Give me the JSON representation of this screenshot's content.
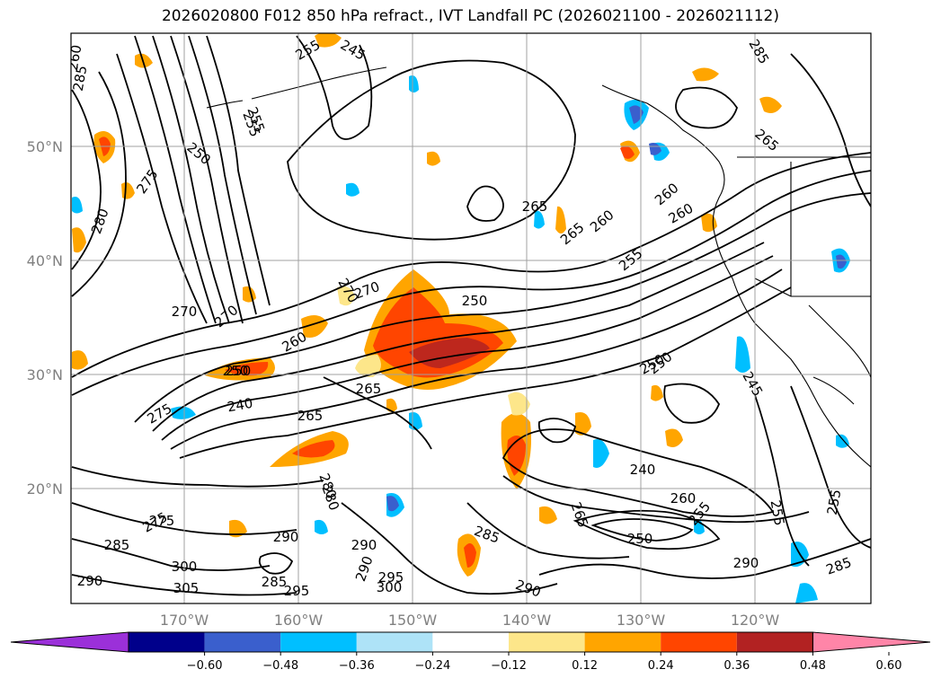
{
  "title": "2026020800 F012 850 hPa refract., IVT Landfall PC (2026021100 - 2026021112)",
  "map": {
    "lon_labels": [
      "170°W",
      "160°W",
      "150°W",
      "140°W",
      "130°W",
      "120°W"
    ],
    "lat_labels": [
      "50°N",
      "40°N",
      "30°N",
      "20°N"
    ],
    "lon_values": [
      -170,
      -160,
      -150,
      -140,
      -130,
      -120
    ],
    "lat_values": [
      50,
      40,
      30,
      20
    ],
    "contour_labels": [
      "285",
      "260",
      "275",
      "280",
      "270",
      "275",
      "270",
      "250",
      "255",
      "250",
      "245",
      "255",
      "255",
      "250",
      "265",
      "260",
      "265",
      "260",
      "255",
      "270",
      "270",
      "260",
      "250",
      "250",
      "265",
      "240",
      "275",
      "260",
      "265",
      "280",
      "245",
      "250",
      "290",
      "275",
      "285",
      "290",
      "280",
      "290",
      "295",
      "285",
      "305",
      "300",
      "300",
      "295",
      "290",
      "265",
      "285",
      "290",
      "260",
      "240",
      "255",
      "250",
      "255",
      "265",
      "285",
      "285",
      "255",
      "290"
    ]
  },
  "colorbar": {
    "ticks": [
      "−0.60",
      "−0.48",
      "−0.36",
      "−0.24",
      "−0.12",
      "0.12",
      "0.24",
      "0.36",
      "0.48",
      "0.60"
    ],
    "colors": [
      "#9b30d9",
      "#00008b",
      "#3a5fcd",
      "#00bfff",
      "#aee3f7",
      "#ffffff",
      "#fde68a",
      "#ffa500",
      "#ff4500",
      "#b22222",
      "#ff85a8"
    ]
  }
}
